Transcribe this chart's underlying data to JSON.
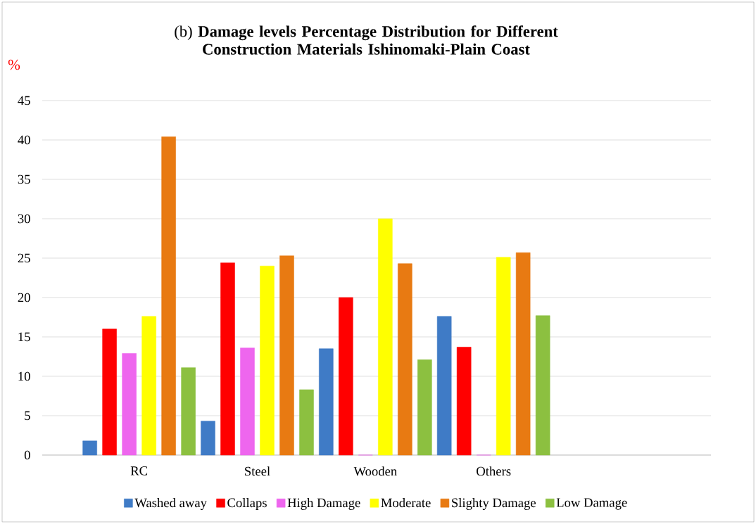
{
  "chart_data": {
    "type": "bar",
    "title": "(b) **Damage levels Percentage Distribution for Different Construction Materials Ishinomaki-Plain Coast**",
    "ylabel": "%",
    "categories": [
      "RC",
      "Steel",
      "Wooden",
      "Others"
    ],
    "series": [
      {
        "name": "Washed away",
        "color": "#3f7bc6",
        "values": [
          1.8,
          4.3,
          13.5,
          17.6
        ]
      },
      {
        "name": "Collaps",
        "color": "#ff0000",
        "values": [
          16,
          24.4,
          20,
          13.7
        ]
      },
      {
        "name": "High Damage",
        "color": "#ee66ee",
        "values": [
          12.9,
          13.6,
          0,
          0
        ]
      },
      {
        "name": "Moderate",
        "color": "#ffff00",
        "values": [
          17.6,
          24,
          30,
          25.1
        ]
      },
      {
        "name": "Slighty Damage",
        "color": "#e87a12",
        "values": [
          40.4,
          25.3,
          24.3,
          25.7
        ]
      },
      {
        "name": "Low Damage",
        "color": "#8cc040",
        "values": [
          11.1,
          8.3,
          12.1,
          17.7
        ]
      }
    ],
    "ylim": [
      0,
      45
    ],
    "yticks": [
      0,
      5,
      10,
      15,
      20,
      25,
      30,
      35,
      40,
      45
    ],
    "grid": "y",
    "legend": "bottom"
  }
}
